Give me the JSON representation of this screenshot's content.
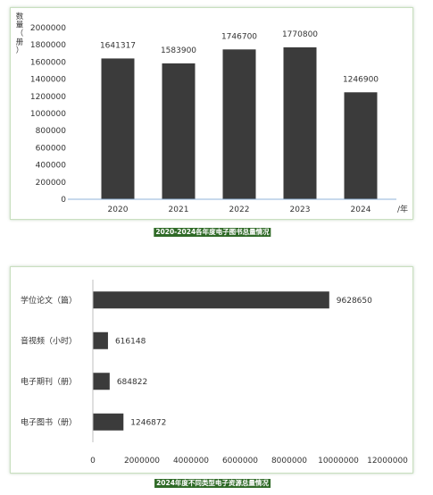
{
  "chart_data": [
    {
      "type": "bar",
      "title": "2020-2024各年度电子图书总量情况",
      "ylabel": "数量（册）",
      "x_unit": "/年",
      "categories": [
        "2020",
        "2021",
        "2022",
        "2023",
        "2024"
      ],
      "values": [
        1641317,
        1583900,
        1746700,
        1770800,
        1246900
      ],
      "ylim": [
        0,
        2000000
      ],
      "yticks": [
        "0",
        "200000",
        "400000",
        "600000",
        "800000",
        "1000000",
        "1200000",
        "1400000",
        "1600000",
        "1800000",
        "2000000"
      ],
      "data_labels": [
        "1641317",
        "1583900",
        "1746700",
        "1770800",
        "1246900"
      ],
      "bar_color": "#3b3b3b",
      "grid": false
    },
    {
      "type": "bar",
      "orientation": "horizontal",
      "title": "2024年度不同类型电子资源总量情况",
      "categories": [
        "学位论文（篇）",
        "音视频（小时）",
        "电子期刊（册）",
        "电子图书（册）"
      ],
      "values": [
        9628650,
        616148,
        684822,
        1246872
      ],
      "xlim": [
        0,
        12000000
      ],
      "xticks": [
        "0",
        "2000000",
        "4000000",
        "6000000",
        "8000000",
        "10000000",
        "12000000"
      ],
      "data_labels": [
        "9628650",
        "616148",
        "684822",
        "1246872"
      ],
      "bar_color": "#3b3b3b",
      "grid": false
    }
  ]
}
